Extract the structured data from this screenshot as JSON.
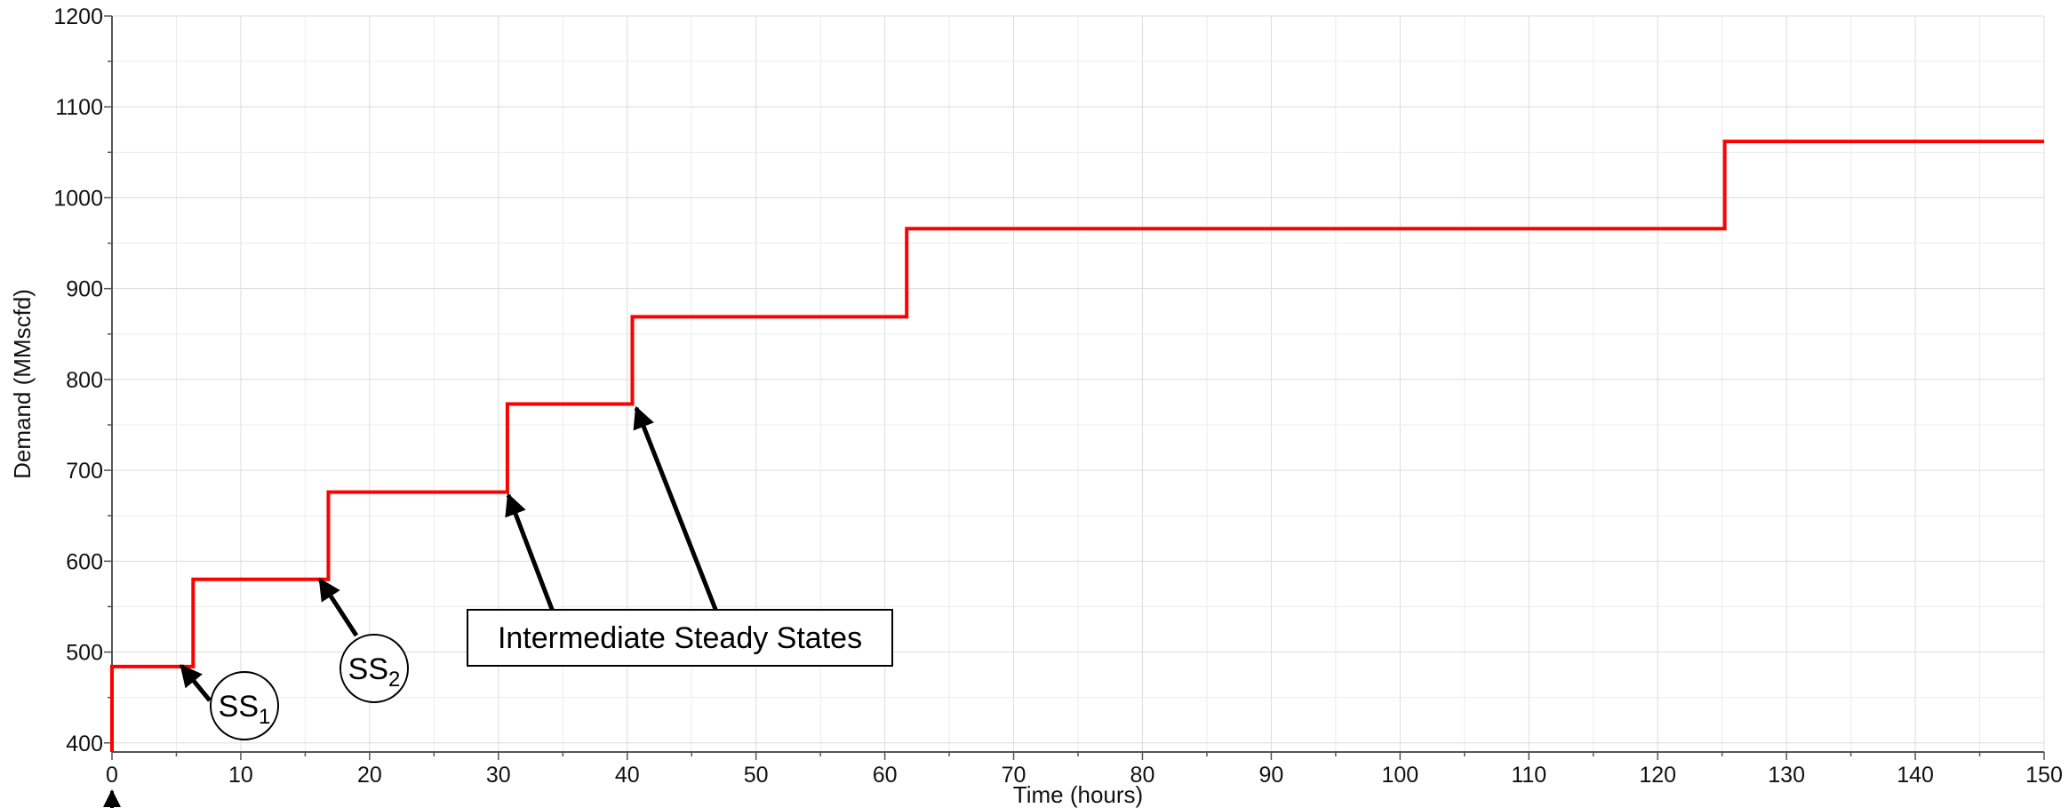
{
  "chart_data": {
    "type": "line",
    "title": "",
    "xlabel": "Time (hours)",
    "ylabel": "Demand (MMscfd)",
    "xlim": [
      0,
      150
    ],
    "ylim": [
      390,
      1200
    ],
    "x_ticks": [
      0,
      10,
      20,
      30,
      40,
      50,
      60,
      70,
      80,
      90,
      100,
      110,
      120,
      130,
      140,
      150
    ],
    "y_ticks": [
      400,
      500,
      600,
      700,
      800,
      900,
      1000,
      1100,
      1200
    ],
    "grid": true,
    "line_color": "#ff0000",
    "series": [
      {
        "name": "",
        "step": true,
        "points": [
          [
            0,
            390
          ],
          [
            0,
            484
          ],
          [
            6.3,
            484
          ],
          [
            6.3,
            580
          ],
          [
            16.8,
            580
          ],
          [
            16.8,
            676
          ],
          [
            30.7,
            676
          ],
          [
            30.7,
            773
          ],
          [
            40.4,
            773
          ],
          [
            40.4,
            869
          ],
          [
            61.7,
            869
          ],
          [
            61.7,
            966
          ],
          [
            125.2,
            966
          ],
          [
            125.2,
            1062
          ],
          [
            150,
            1062
          ]
        ]
      }
    ],
    "annotations": {
      "box_label": "Intermediate Steady States",
      "ss1": {
        "base": "SS",
        "sub": "1"
      },
      "ss2": {
        "base": "SS",
        "sub": "2"
      }
    }
  }
}
